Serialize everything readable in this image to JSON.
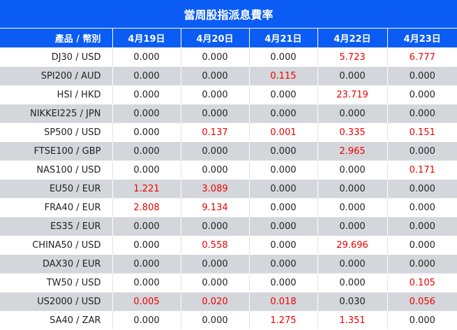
{
  "title": "當周股指派息費率",
  "header": {
    "product_label": "產品 / 幣別",
    "dates": [
      "4月19日",
      "4月20日",
      "4月21日",
      "4月22日",
      "4月23日"
    ]
  },
  "colors": {
    "header_bg": "#0a5cf5",
    "highlight_text": "#f00000",
    "row_alt_bg": "#d3d6da"
  },
  "rows": [
    {
      "product": "DJ30 / USD",
      "values": [
        "0.000",
        "0.000",
        "0.000",
        "5.723",
        "6.777"
      ],
      "red": [
        false,
        false,
        false,
        true,
        true
      ]
    },
    {
      "product": "SPI200 / AUD",
      "values": [
        "0.000",
        "0.000",
        "0.115",
        "0.000",
        "0.000"
      ],
      "red": [
        false,
        false,
        true,
        false,
        false
      ]
    },
    {
      "product": "HSI / HKD",
      "values": [
        "0.000",
        "0.000",
        "0.000",
        "23.719",
        "0.000"
      ],
      "red": [
        false,
        false,
        false,
        true,
        false
      ]
    },
    {
      "product": "NIKKEI225 / JPN",
      "values": [
        "0.000",
        "0.000",
        "0.000",
        "0.000",
        "0.000"
      ],
      "red": [
        false,
        false,
        false,
        false,
        false
      ]
    },
    {
      "product": "SP500 / USD",
      "values": [
        "0.000",
        "0.137",
        "0.001",
        "0.335",
        "0.151"
      ],
      "red": [
        false,
        true,
        true,
        true,
        true
      ]
    },
    {
      "product": "FTSE100 / GBP",
      "values": [
        "0.000",
        "0.000",
        "0.000",
        "2.965",
        "0.000"
      ],
      "red": [
        false,
        false,
        false,
        true,
        false
      ]
    },
    {
      "product": "NAS100 / USD",
      "values": [
        "0.000",
        "0.000",
        "0.000",
        "0.000",
        "0.171"
      ],
      "red": [
        false,
        false,
        false,
        false,
        true
      ]
    },
    {
      "product": "EU50 / EUR",
      "values": [
        "1.221",
        "3.089",
        "0.000",
        "0.000",
        "0.000"
      ],
      "red": [
        true,
        true,
        false,
        false,
        false
      ]
    },
    {
      "product": "FRA40 / EUR",
      "values": [
        "2.808",
        "9.134",
        "0.000",
        "0.000",
        "0.000"
      ],
      "red": [
        true,
        true,
        false,
        false,
        false
      ]
    },
    {
      "product": "ES35 / EUR",
      "values": [
        "0.000",
        "0.000",
        "0.000",
        "0.000",
        "0.000"
      ],
      "red": [
        false,
        false,
        false,
        false,
        false
      ]
    },
    {
      "product": "CHINA50 / USD",
      "values": [
        "0.000",
        "0.558",
        "0.000",
        "29.696",
        "0.000"
      ],
      "red": [
        false,
        true,
        false,
        true,
        false
      ]
    },
    {
      "product": "DAX30 / EUR",
      "values": [
        "0.000",
        "0.000",
        "0.000",
        "0.000",
        "0.000"
      ],
      "red": [
        false,
        false,
        false,
        false,
        false
      ]
    },
    {
      "product": "TW50 / USD",
      "values": [
        "0.000",
        "0.000",
        "0.000",
        "0.000",
        "0.105"
      ],
      "red": [
        false,
        false,
        false,
        false,
        true
      ]
    },
    {
      "product": "US2000 / USD",
      "values": [
        "0.005",
        "0.020",
        "0.018",
        "0.030",
        "0.056"
      ],
      "red": [
        true,
        true,
        true,
        false,
        true
      ]
    },
    {
      "product": "SA40 / ZAR",
      "values": [
        "0.000",
        "0.000",
        "1.275",
        "1.351",
        "0.000"
      ],
      "red": [
        false,
        false,
        true,
        true,
        false
      ]
    }
  ]
}
